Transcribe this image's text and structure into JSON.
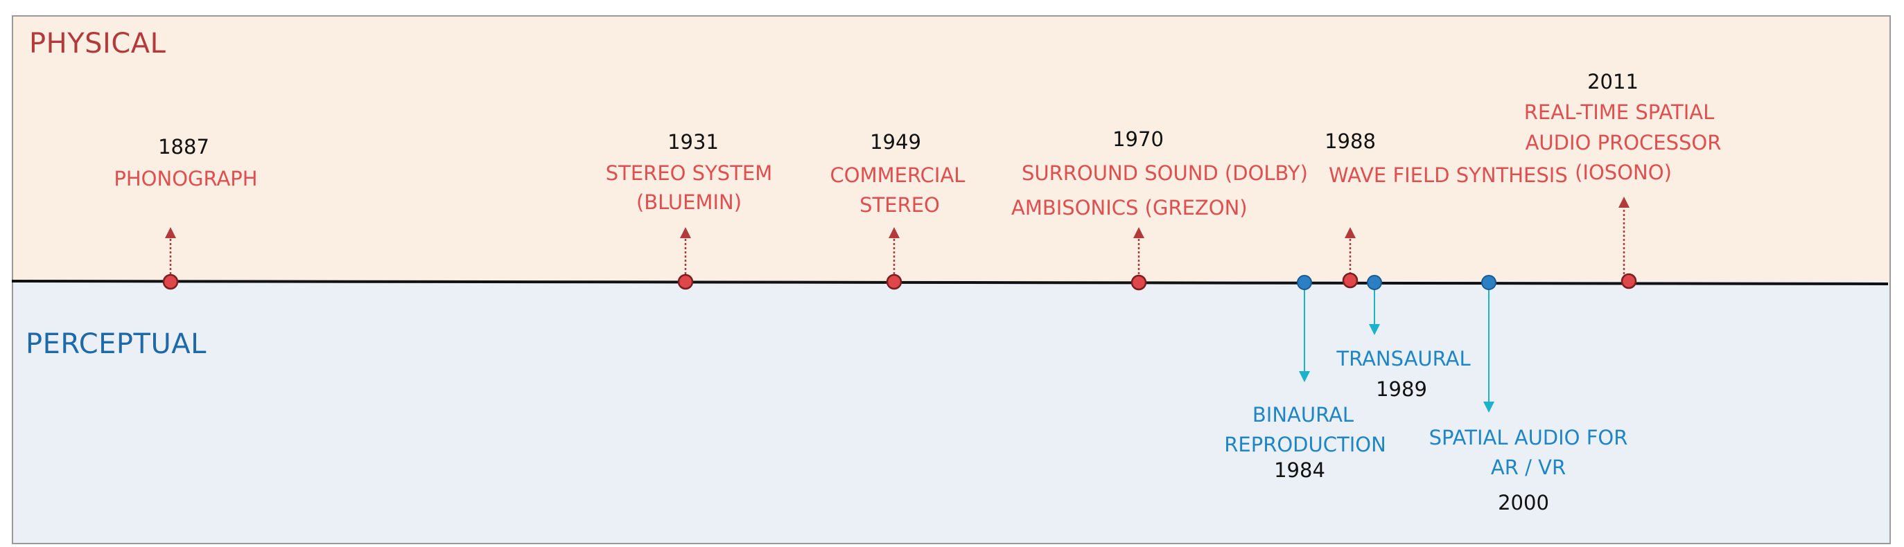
{
  "regions": {
    "physical": "PHYSICAL",
    "perceptual": "PERCEPTUAL"
  },
  "events": {
    "phonograph": {
      "year": "1887",
      "name": "PHONOGRAPH"
    },
    "stereo_system": {
      "year": "1931",
      "line1": "STEREO SYSTEM",
      "line2": "(BLUEMIN)"
    },
    "commercial_stereo": {
      "year": "1949",
      "line1": "COMMERCIAL",
      "line2": "STEREO"
    },
    "surround": {
      "year": "1970",
      "line1": "SURROUND SOUND (DOLBY)",
      "line2": "AMBISONICS (GREZON)"
    },
    "wfs": {
      "year": "1988",
      "name": "WAVE FIELD SYNTHESIS"
    },
    "rt_spatial": {
      "year": "2011",
      "line1": "REAL-TIME SPATIAL",
      "line2": "AUDIO PROCESSOR",
      "line3": "(IOSONO)"
    },
    "binaural": {
      "year": "1984",
      "line1": "BINAURAL",
      "line2": "REPRODUCTION"
    },
    "transaural": {
      "year": "1989",
      "name": "TRANSAURAL"
    },
    "arvr": {
      "year": "2000",
      "line1": "SPATIAL AUDIO FOR",
      "line2": "AR / VR"
    }
  },
  "colors": {
    "physical": "#e04f50",
    "perceptual": "#1f86c6",
    "arrow_perceptual": "#1ab3c9",
    "arrow_physical": "#b23a3a"
  }
}
